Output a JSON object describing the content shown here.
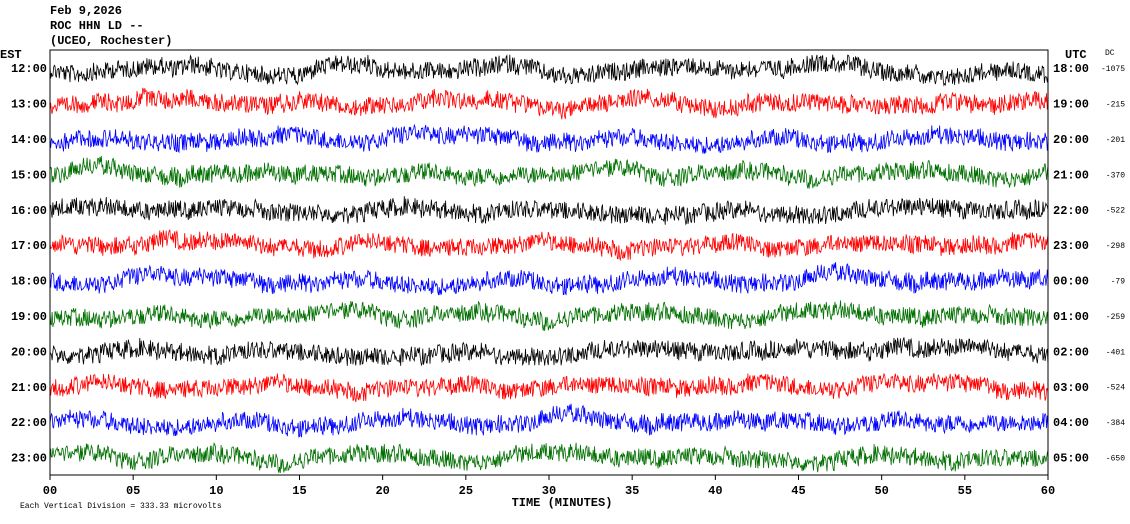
{
  "header": {
    "date": "Feb 9,2026",
    "station": "ROC HHN LD --",
    "location": "(UCEO, Rochester)"
  },
  "left_axis": {
    "title": "EST",
    "labels": [
      "12:00",
      "13:00",
      "14:00",
      "15:00",
      "16:00",
      "17:00",
      "18:00",
      "19:00",
      "20:00",
      "21:00",
      "22:00",
      "23:00"
    ]
  },
  "right_axis": {
    "title": "UTC",
    "labels": [
      "18:00",
      "19:00",
      "20:00",
      "21:00",
      "22:00",
      "23:00",
      "00:00",
      "01:00",
      "02:00",
      "03:00",
      "04:00",
      "05:00"
    ]
  },
  "dc": {
    "title": "DC",
    "values": [
      -1075,
      -215,
      -201,
      -370,
      -522,
      -298,
      -79,
      -259,
      -401,
      -524,
      -384,
      -650
    ]
  },
  "x_axis": {
    "title": "TIME (MINUTES)",
    "ticks": [
      "00",
      "05",
      "10",
      "15",
      "20",
      "25",
      "30",
      "35",
      "40",
      "45",
      "50",
      "55",
      "60"
    ]
  },
  "footer": "Each Vertical Division =  333.33 microvolts",
  "trace_colors": [
    "#000000",
    "#ff0000",
    "#0000ff",
    "#007000"
  ]
}
